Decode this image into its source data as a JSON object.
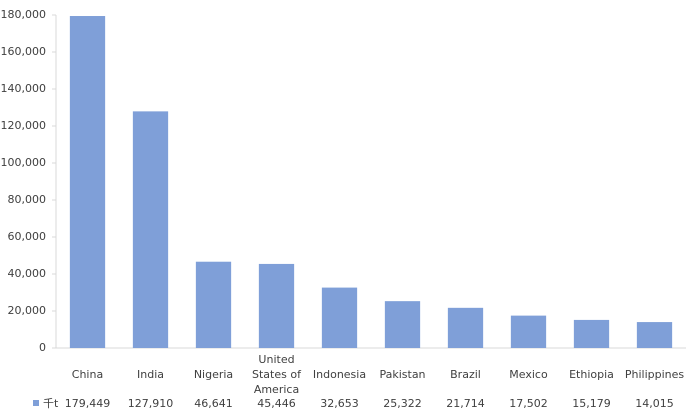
{
  "chart_data": {
    "type": "bar",
    "categories": [
      "China",
      "India",
      "Nigeria",
      "United States of America",
      "Indonesia",
      "Pakistan",
      "Brazil",
      "Mexico",
      "Ethiopia",
      "Philippines"
    ],
    "series": [
      {
        "name": "千t",
        "color": "#7f9fd8",
        "values": [
          179449,
          127910,
          46641,
          45446,
          32653,
          25322,
          21714,
          17502,
          15179,
          14015
        ],
        "value_labels": [
          "179,449",
          "127,910",
          "46,641",
          "45,446",
          "32,653",
          "25,322",
          "21,714",
          "17,502",
          "15,179",
          "14,015"
        ]
      }
    ],
    "ylim": [
      0,
      180000
    ],
    "yticks": [
      0,
      {
        "value": 20000,
        "label": "20,000"
      },
      {
        "value": 40000,
        "label": "40,000"
      },
      {
        "value": 60000,
        "label": "60,000"
      },
      {
        "value": 80000,
        "label": "80,000"
      },
      {
        "value": 100000,
        "label": "100,000"
      },
      {
        "value": 120000,
        "label": "120,000"
      },
      {
        "value": 140000,
        "label": "140,000"
      },
      {
        "value": 160000,
        "label": "160,000"
      },
      {
        "value": 180000,
        "label": "180,000"
      }
    ],
    "grid": false
  }
}
